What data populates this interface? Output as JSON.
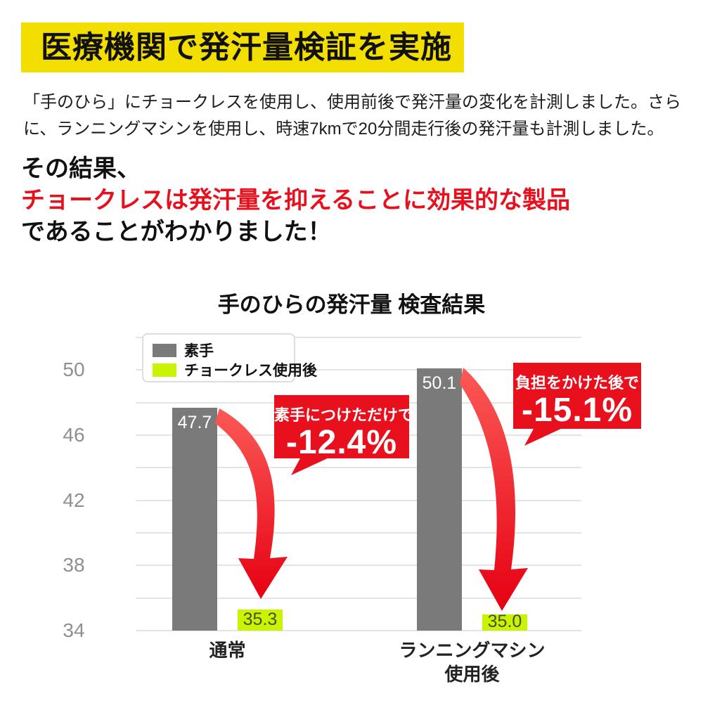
{
  "colors": {
    "banner_yellow": "#f2df00",
    "accent_red": "#e8101c",
    "bar_gray": "#7a7a7a",
    "bar_green": "#c8f400"
  },
  "header": {
    "title": "医療機関で発汗量検証を実施"
  },
  "intro": {
    "line1": "「手のひら」にチョークレスを使用し、使用前後で発汗量の変化を計測しました。さら",
    "line2": "に、ランニングマシンを使用し、時速7kmで20分間走行後の発汗量も計測しました。"
  },
  "result": {
    "line1": "その結果、",
    "line2": "チョークレスは発汗量を抑えることに効果的な製品",
    "line3": "であることがわかりました！"
  },
  "chart_data": {
    "type": "bar",
    "title": "手のひらの発汗量 検査結果",
    "categories": [
      "通常",
      "ランニングマシン使用後"
    ],
    "series": [
      {
        "name": "素手",
        "color": "#7a7a7a",
        "values": [
          47.7,
          50.1
        ]
      },
      {
        "name": "チョークレス使用後",
        "color": "#c8f400",
        "values": [
          35.3,
          35.0
        ]
      }
    ],
    "ylim": [
      34,
      52
    ],
    "yticks": [
      50,
      46,
      42,
      38,
      34
    ],
    "gridline_step": 2,
    "grid": true,
    "legend_position": "top-left",
    "value_labels": true,
    "annotations": [
      {
        "label": "素手につけただけで",
        "value": "-12.4%"
      },
      {
        "label": "負担をかけた後で",
        "value": "-15.1%"
      }
    ]
  }
}
